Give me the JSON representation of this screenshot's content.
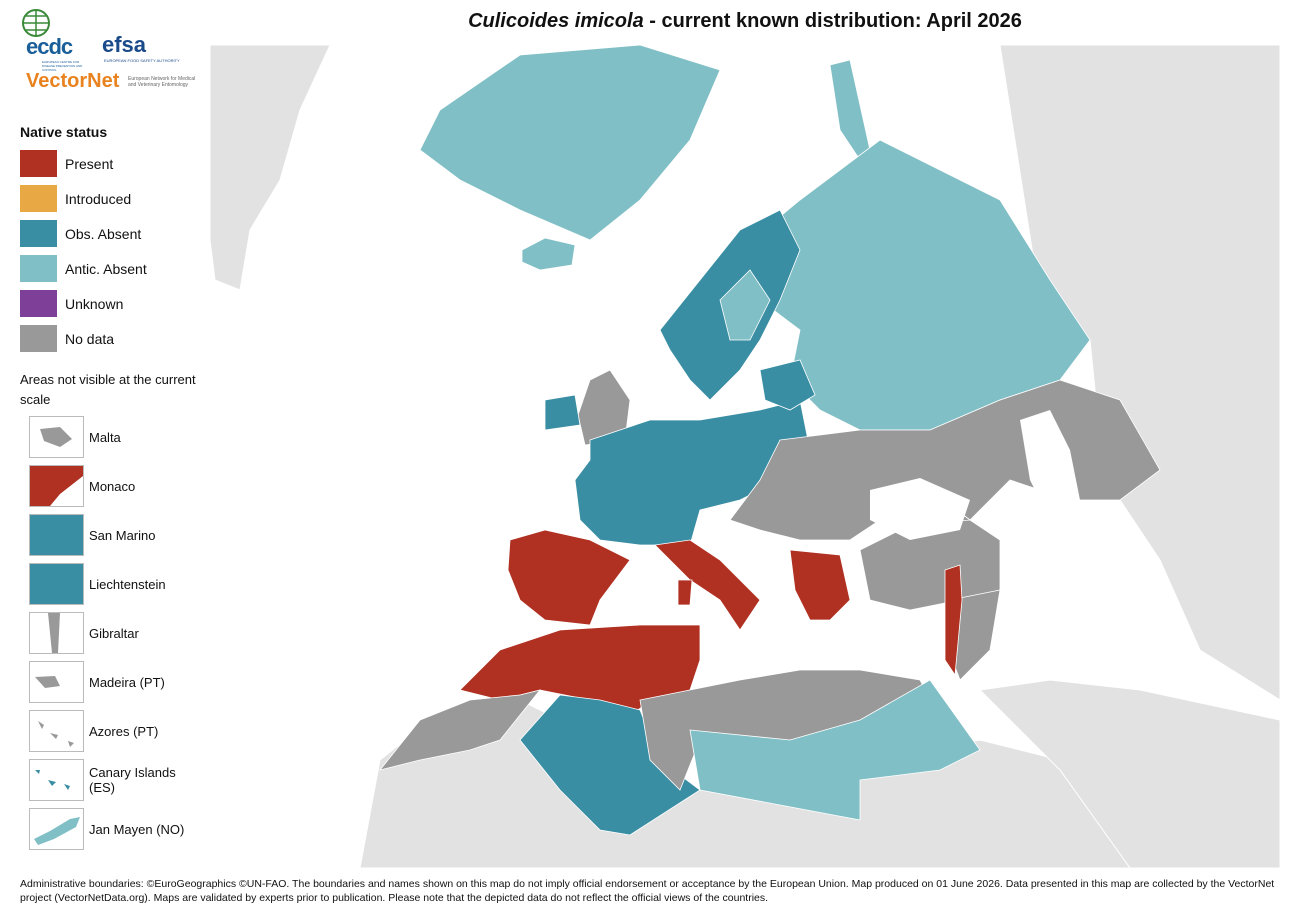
{
  "title": {
    "species": "Culicoides imicola",
    "rest": "- current known distribution: April 2026"
  },
  "logos": {
    "ecdc": "ecdc",
    "ecdc_sub": "EUROPEAN CENTRE FOR DISEASE PREVENTION AND CONTROL",
    "efsa": "efsa",
    "efsa_sub": "EUROPEAN FOOD SAFETY AUTHORITY",
    "vectornet": "VectorNet",
    "vectornet_sub": "European Network for Medical and Veterinary Entomology"
  },
  "legend": {
    "title": "Native status",
    "items": [
      {
        "label": "Present",
        "color": "#b03022"
      },
      {
        "label": "Introduced",
        "color": "#e8a844"
      },
      {
        "label": "Obs. Absent",
        "color": "#3a8ea3"
      },
      {
        "label": "Antic. Absent",
        "color": "#80bfc6"
      },
      {
        "label": "Unknown",
        "color": "#7d3f98"
      },
      {
        "label": "No data",
        "color": "#999999"
      }
    ]
  },
  "insets": {
    "heading": "Areas not visible at the current scale",
    "items": [
      "Malta",
      "Monaco",
      "San Marino",
      "Liechtenstein",
      "Gibraltar",
      "Madeira (PT)",
      "Azores (PT)",
      "Canary Islands (ES)",
      "Jan Mayen (NO)"
    ]
  },
  "footer": "Administrative boundaries: ©EuroGeographics ©UN-FAO. The boundaries and names shown on this map do not imply official endorsement or acceptance by the European Union. Map produced on 01 June 2026. Data presented in this map are collected by the VectorNet project (VectorNetData.org). Maps are validated by experts prior to publication. Please note that the depicted data do not reflect the official views of the countries."
}
